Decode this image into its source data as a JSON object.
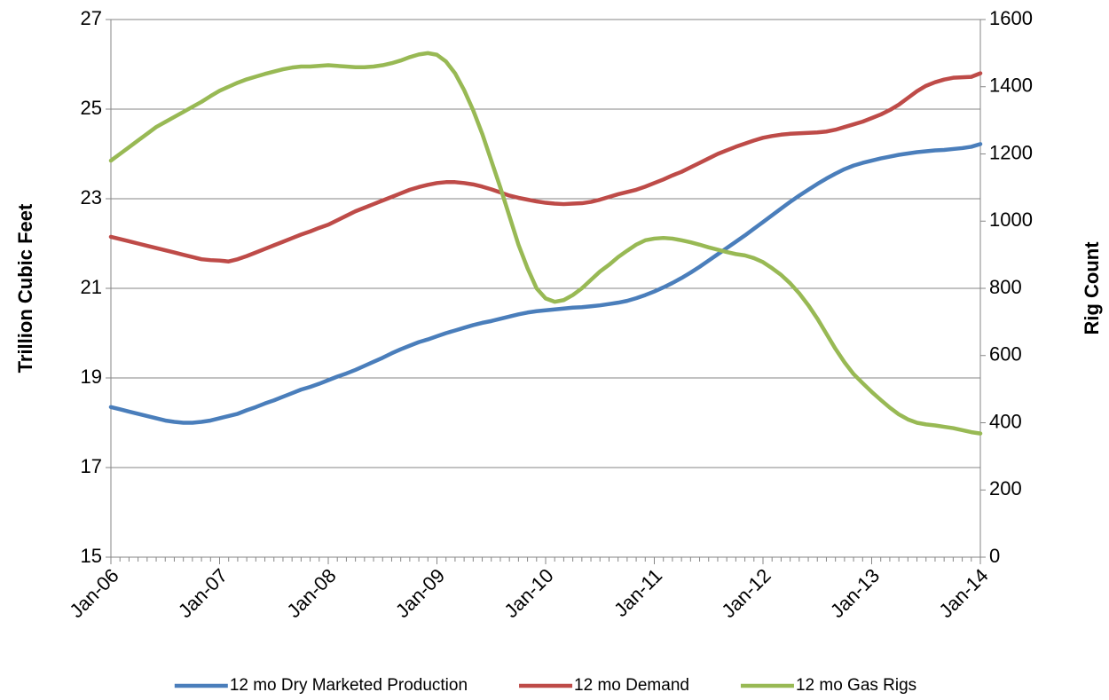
{
  "chart_data": {
    "type": "line",
    "y_label": "Trillion Cubic Feet",
    "y2_label": "Rig Count",
    "categories": [
      "Jan-06",
      null,
      null,
      null,
      null,
      null,
      null,
      null,
      null,
      null,
      null,
      null,
      "Jan-07",
      null,
      null,
      null,
      null,
      null,
      null,
      null,
      null,
      null,
      null,
      null,
      "Jan-08",
      null,
      null,
      null,
      null,
      null,
      null,
      null,
      null,
      null,
      null,
      null,
      "Jan-09",
      null,
      null,
      null,
      null,
      null,
      null,
      null,
      null,
      null,
      null,
      null,
      "Jan-10",
      null,
      null,
      null,
      null,
      null,
      null,
      null,
      null,
      null,
      null,
      null,
      "Jan-11",
      null,
      null,
      null,
      null,
      null,
      null,
      null,
      null,
      null,
      null,
      null,
      "Jan-12",
      null,
      null,
      null,
      null,
      null,
      null,
      null,
      null,
      null,
      null,
      null,
      "Jan-13",
      null,
      null,
      null,
      null,
      null,
      null,
      null,
      null,
      null,
      null,
      null,
      "Jan-14"
    ],
    "series": [
      {
        "name": "12 mo Dry Marketed Production",
        "color": "#4a7ebb",
        "axis": "y",
        "values": [
          18.35,
          18.3,
          18.25,
          18.2,
          18.15,
          18.1,
          18.05,
          18.02,
          18.0,
          18.0,
          18.02,
          18.05,
          18.1,
          18.15,
          18.2,
          18.28,
          18.35,
          18.43,
          18.5,
          18.58,
          18.66,
          18.74,
          18.8,
          18.87,
          18.95,
          19.03,
          19.1,
          19.18,
          19.27,
          19.36,
          19.45,
          19.55,
          19.64,
          19.72,
          19.8,
          19.86,
          19.93,
          20.0,
          20.06,
          20.12,
          20.18,
          20.23,
          20.27,
          20.32,
          20.37,
          20.42,
          20.46,
          20.49,
          20.51,
          20.53,
          20.55,
          20.57,
          20.58,
          20.6,
          20.62,
          20.65,
          20.68,
          20.72,
          20.78,
          20.85,
          20.93,
          21.02,
          21.12,
          21.23,
          21.35,
          21.48,
          21.62,
          21.76,
          21.9,
          22.04,
          22.18,
          22.33,
          22.48,
          22.63,
          22.78,
          22.93,
          23.07,
          23.2,
          23.33,
          23.45,
          23.56,
          23.66,
          23.74,
          23.8,
          23.85,
          23.9,
          23.94,
          23.98,
          24.01,
          24.04,
          24.06,
          24.08,
          24.09,
          24.11,
          24.13,
          24.16,
          24.22
        ]
      },
      {
        "name": "12 mo Demand",
        "color": "#be4b48",
        "axis": "y",
        "values": [
          22.15,
          22.1,
          22.05,
          22.0,
          21.95,
          21.9,
          21.85,
          21.8,
          21.75,
          21.7,
          21.65,
          21.63,
          21.62,
          21.6,
          21.65,
          21.72,
          21.8,
          21.88,
          21.96,
          22.04,
          22.12,
          22.2,
          22.27,
          22.35,
          22.42,
          22.52,
          22.62,
          22.72,
          22.8,
          22.88,
          22.96,
          23.04,
          23.12,
          23.2,
          23.26,
          23.31,
          23.35,
          23.37,
          23.37,
          23.35,
          23.32,
          23.27,
          23.21,
          23.14,
          23.07,
          23.02,
          22.98,
          22.94,
          22.91,
          22.89,
          22.88,
          22.89,
          22.9,
          22.93,
          22.98,
          23.04,
          23.1,
          23.15,
          23.2,
          23.27,
          23.35,
          23.43,
          23.52,
          23.6,
          23.7,
          23.8,
          23.9,
          24.0,
          24.08,
          24.16,
          24.23,
          24.3,
          24.36,
          24.4,
          24.43,
          24.45,
          24.46,
          24.47,
          24.48,
          24.5,
          24.54,
          24.6,
          24.66,
          24.72,
          24.8,
          24.88,
          24.98,
          25.1,
          25.25,
          25.4,
          25.52,
          25.6,
          25.66,
          25.7,
          25.71,
          25.72,
          25.8
        ]
      },
      {
        "name": "12 mo Gas Rigs",
        "color": "#98b954",
        "axis": "y2",
        "values": [
          1180,
          1200,
          1220,
          1240,
          1260,
          1280,
          1295,
          1310,
          1325,
          1340,
          1355,
          1372,
          1388,
          1400,
          1412,
          1422,
          1430,
          1438,
          1445,
          1452,
          1457,
          1460,
          1460,
          1462,
          1464,
          1462,
          1460,
          1458,
          1458,
          1460,
          1464,
          1470,
          1478,
          1488,
          1496,
          1500,
          1495,
          1475,
          1440,
          1390,
          1330,
          1260,
          1180,
          1100,
          1015,
          930,
          860,
          800,
          770,
          760,
          765,
          780,
          800,
          825,
          850,
          870,
          893,
          912,
          930,
          943,
          948,
          950,
          948,
          943,
          937,
          930,
          922,
          915,
          908,
          902,
          898,
          890,
          878,
          860,
          840,
          815,
          785,
          750,
          710,
          665,
          620,
          580,
          545,
          518,
          492,
          468,
          445,
          425,
          410,
          400,
          395,
          392,
          388,
          384,
          378,
          372,
          368
        ]
      }
    ],
    "ylim": [
      15,
      27
    ],
    "yticks": [
      15,
      17,
      19,
      21,
      23,
      25,
      27
    ],
    "y2lim": [
      0,
      1600
    ],
    "y2ticks": [
      0,
      200,
      400,
      600,
      800,
      1000,
      1200,
      1400,
      1600
    ],
    "grid": true,
    "legend": "bottom"
  }
}
